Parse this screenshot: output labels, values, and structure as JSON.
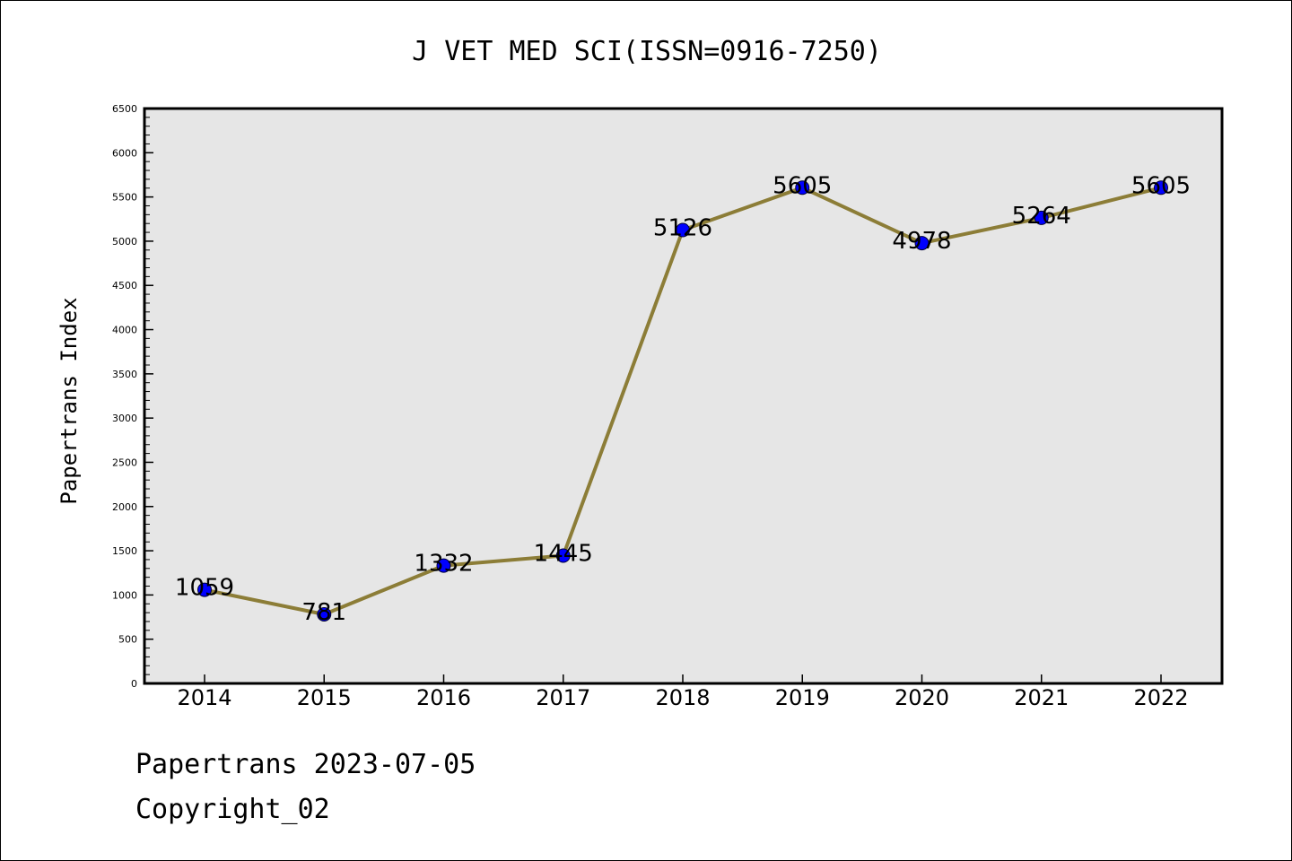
{
  "chart_data": {
    "type": "line",
    "title": "J VET MED SCI(ISSN=0916-7250)",
    "xlabel": "",
    "ylabel": "Papertrans Index",
    "categories": [
      "2014",
      "2015",
      "2016",
      "2017",
      "2018",
      "2019",
      "2020",
      "2021",
      "2022"
    ],
    "series": [
      {
        "values": [
          1059,
          781,
          1332,
          1445,
          5126,
          5605,
          4978,
          5264,
          5605
        ],
        "line_color": "#8C7D37",
        "marker_color": "#0000FF"
      }
    ],
    "data_labels": [
      "1059",
      "781",
      "1332",
      "1445",
      "5126",
      "5605",
      "4978",
      "5264",
      "5605"
    ],
    "ylim": [
      0,
      6500
    ],
    "yticks": [
      0,
      500,
      1000,
      1500,
      2000,
      2500,
      3000,
      3500,
      4000,
      4500,
      5000,
      5500,
      6000,
      6500
    ],
    "yminor_step": 100,
    "plot_background": "#E6E6E6",
    "grid": false,
    "legend": "none"
  },
  "footer": {
    "line1": "Papertrans 2023-07-05",
    "line2": "Copyright_02"
  }
}
